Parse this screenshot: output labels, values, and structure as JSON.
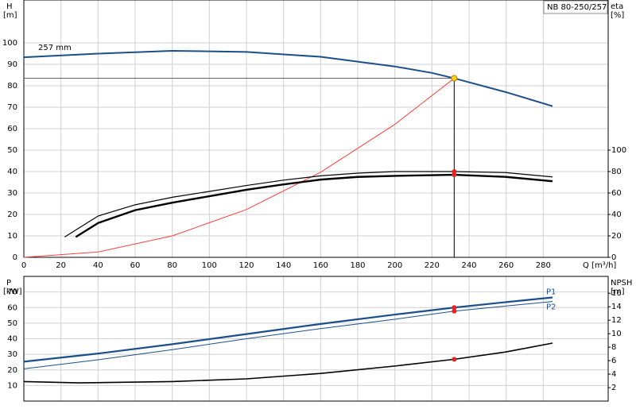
{
  "chart_data": [
    {
      "type": "line",
      "title": "NB 80-250/257",
      "annotation": "257 mm",
      "xlabel": "Q [m³/h]",
      "ylabel": "H",
      "yunit": "[m]",
      "y2label": "eta",
      "y2unit": "[%]",
      "xlim": [
        0,
        315
      ],
      "xticks": [
        0,
        20,
        40,
        60,
        80,
        100,
        120,
        140,
        160,
        180,
        200,
        220,
        240,
        260,
        280
      ],
      "ylim": [
        0,
        120
      ],
      "yticks": [
        0,
        10,
        20,
        30,
        40,
        50,
        60,
        70,
        80,
        90,
        100
      ],
      "y2lim": [
        0,
        240
      ],
      "y2ticks": [
        0,
        20,
        40,
        60,
        80,
        100
      ],
      "grid": true,
      "series": [
        {
          "color": "#1b4f8a",
          "x": [
            0,
            40,
            80,
            120,
            160,
            200,
            220,
            232,
            260,
            285
          ],
          "values": [
            93.3,
            95,
            96.3,
            95.8,
            93.5,
            89,
            86,
            83.5,
            77,
            70.5
          ]
        },
        {
          "color": "#ff4040",
          "x": [
            0,
            40,
            80,
            120,
            160,
            200,
            232
          ],
          "values": [
            0,
            2.5,
            10,
            22.3,
            39.7,
            62,
            83.5
          ]
        },
        {
          "color": "#000000",
          "axis": "y2",
          "x": [
            22,
            40,
            60,
            80,
            100,
            120,
            140,
            160,
            180,
            200,
            232,
            260,
            285
          ],
          "values": [
            19,
            38.5,
            49,
            56,
            61.5,
            67,
            72,
            76,
            78.5,
            80,
            80,
            79,
            75
          ]
        },
        {
          "color": "#000000",
          "axis": "y2",
          "x": [
            28,
            40,
            60,
            80,
            100,
            120,
            140,
            160,
            180,
            200,
            232,
            260,
            285
          ],
          "values": [
            19,
            32,
            44,
            51,
            57,
            63,
            68,
            72.5,
            75,
            76,
            77,
            75,
            71
          ]
        }
      ],
      "duty_point": {
        "x": 232,
        "y": 83.5
      },
      "points": [
        {
          "x": 232,
          "y": 80,
          "axis": "y2"
        },
        {
          "x": 232,
          "y": 77,
          "axis": "y2"
        }
      ]
    },
    {
      "type": "line",
      "ylabel": "P",
      "yunit": "[kW]",
      "y2label": "NPSH",
      "y2unit": "[m]",
      "xlim": [
        0,
        315
      ],
      "ylim": [
        0,
        80
      ],
      "yticks": [
        10,
        20,
        30,
        40,
        50,
        60,
        70
      ],
      "y2lim": [
        0,
        18.5
      ],
      "y2ticks": [
        2,
        4,
        6,
        8,
        10,
        12,
        14,
        16
      ],
      "grid": true,
      "series": [
        {
          "name": "P1",
          "color": "#1b4f8a",
          "x": [
            0,
            40,
            80,
            120,
            160,
            200,
            232,
            260,
            285
          ],
          "values": [
            25.3,
            30.5,
            36.5,
            43,
            49.5,
            55.5,
            60,
            63.5,
            66.5
          ]
        },
        {
          "name": "P2",
          "color": "#1b4f8a",
          "x": [
            0,
            40,
            80,
            120,
            160,
            200,
            232,
            260,
            285
          ],
          "values": [
            20.7,
            26.5,
            33,
            40,
            46.5,
            52.5,
            57.7,
            61,
            63.9
          ]
        },
        {
          "color": "#000000",
          "axis": "y2",
          "x": [
            0,
            30,
            80,
            120,
            160,
            200,
            232,
            260,
            285
          ],
          "values": [
            2.9,
            2.7,
            2.9,
            3.3,
            4.1,
            5.2,
            6.2,
            7.3,
            8.6
          ]
        }
      ],
      "points": [
        {
          "x": 232,
          "y": 60
        },
        {
          "x": 232,
          "y": 57.7
        },
        {
          "x": 232,
          "y": 6.2,
          "axis": "y2"
        }
      ]
    }
  ]
}
